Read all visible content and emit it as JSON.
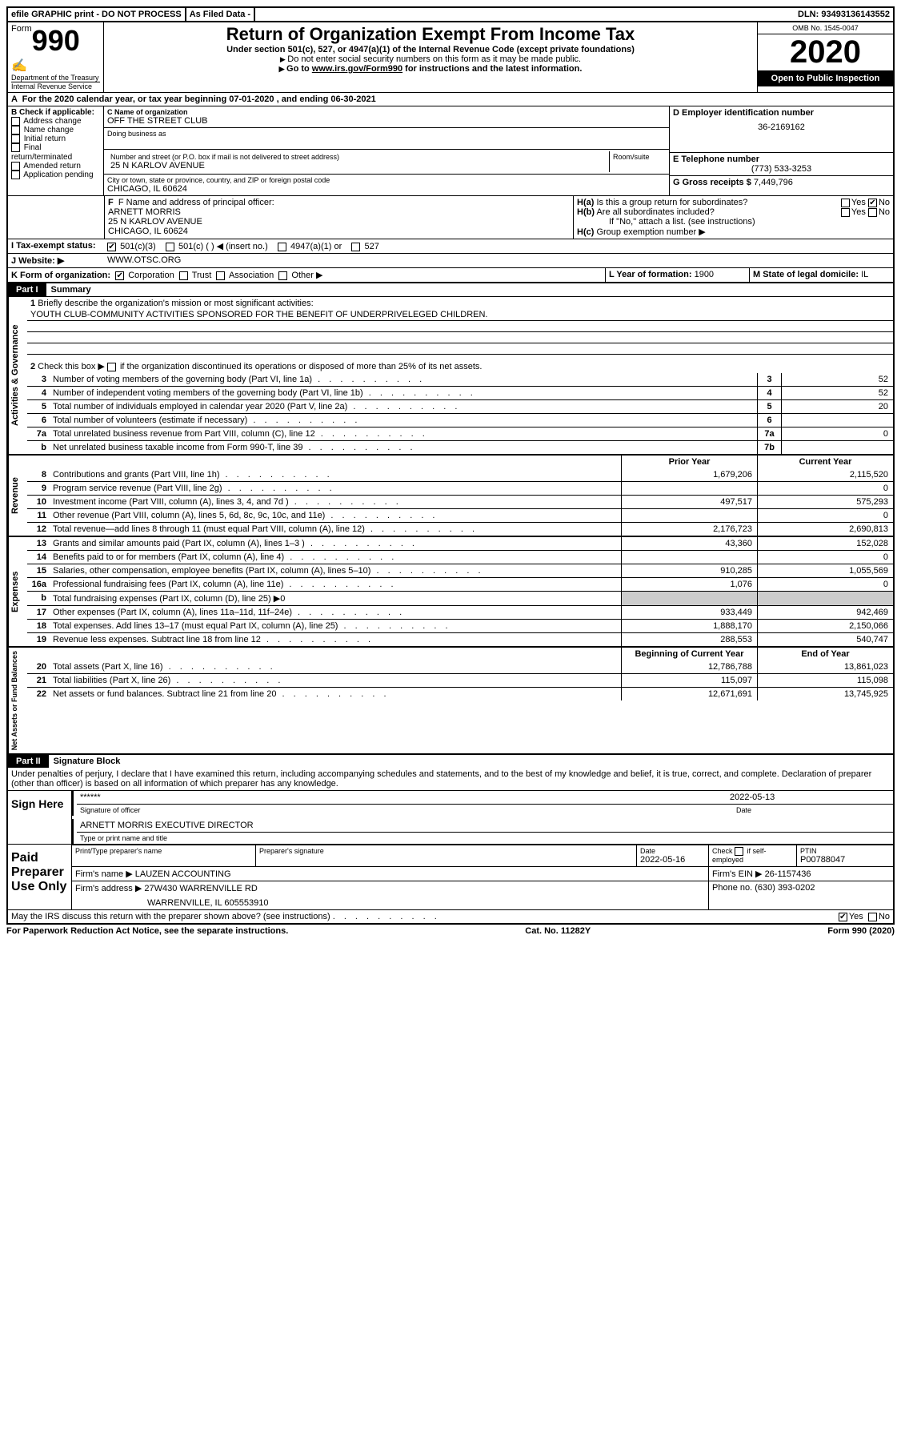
{
  "topbar": {
    "efile": "efile GRAPHIC print - DO NOT PROCESS",
    "asfiled": "As Filed Data -",
    "dln_label": "DLN:",
    "dln": "93493136143552"
  },
  "header": {
    "form_word": "Form",
    "form_num": "990",
    "dept": "Department of the Treasury",
    "irs": "Internal Revenue Service",
    "title": "Return of Organization Exempt From Income Tax",
    "subtitle": "Under section 501(c), 527, or 4947(a)(1) of the Internal Revenue Code (except private foundations)",
    "note1": "Do not enter social security numbers on this form as it may be made public.",
    "note2_pre": "Go to ",
    "note2_link": "www.irs.gov/Form990",
    "note2_post": " for instructions and the latest information.",
    "omb": "OMB No. 1545-0047",
    "year": "2020",
    "open": "Open to Public Inspection"
  },
  "rowA": {
    "prefix": "A",
    "text": "For the 2020 calendar year, or tax year beginning 07-01-2020   , and ending 06-30-2021"
  },
  "boxB": {
    "label": "B Check if applicable:",
    "items": [
      "Address change",
      "Name change",
      "Initial return",
      "Final return/terminated",
      "Amended return",
      "Application pending"
    ]
  },
  "boxC": {
    "label": "C Name of organization",
    "name": "OFF THE STREET CLUB",
    "dba_label": "Doing business as",
    "addr_label": "Number and street (or P.O. box if mail is not delivered to street address)",
    "room_label": "Room/suite",
    "addr": "25 N KARLOV AVENUE",
    "city_label": "City or town, state or province, country, and ZIP or foreign postal code",
    "city": "CHICAGO, IL  60624"
  },
  "boxD": {
    "label": "D Employer identification number",
    "value": "36-2169162"
  },
  "boxE": {
    "label": "E Telephone number",
    "value": "(773) 533-3253"
  },
  "boxG": {
    "label": "G Gross receipts $",
    "value": "7,449,796"
  },
  "boxF": {
    "label": "F  Name and address of principal officer:",
    "name": "ARNETT MORRIS",
    "addr1": "25 N KARLOV AVENUE",
    "addr2": "CHICAGO, IL  60624"
  },
  "boxH": {
    "ha": "H(a)  Is this a group return for subordinates?",
    "hb": "H(b)  Are all subordinates included?",
    "hc_note": "If \"No,\" attach a list. (see instructions)",
    "hc": "H(c)  Group exemption number ▶",
    "yes": "Yes",
    "no": "No"
  },
  "rowI": {
    "label": "I   Tax-exempt status:",
    "opts": [
      "501(c)(3)",
      "501(c) (  ) ◀ (insert no.)",
      "4947(a)(1) or",
      "527"
    ]
  },
  "rowJ": {
    "label": "J   Website: ▶",
    "value": "WWW.OTSC.ORG"
  },
  "rowK": {
    "label": "K Form of organization:",
    "opts": [
      "Corporation",
      "Trust",
      "Association",
      "Other ▶"
    ]
  },
  "rowL": {
    "label": "L Year of formation:",
    "value": "1900"
  },
  "rowM": {
    "label": "M State of legal domicile:",
    "value": "IL"
  },
  "part1": {
    "tab": "Part I",
    "title": "Summary",
    "q1": "Briefly describe the organization's mission or most significant activities:",
    "mission": "YOUTH CLUB-COMMUNITY ACTIVITIES SPONSORED FOR THE BENEFIT OF UNDERPRIVELEGED CHILDREN.",
    "q2": "Check this box ▶       if the organization discontinued its operations or disposed of more than 25% of its net assets.",
    "lines_gov": [
      {
        "n": "3",
        "t": "Number of voting members of the governing body (Part VI, line 1a)",
        "box": "3",
        "v": "52"
      },
      {
        "n": "4",
        "t": "Number of independent voting members of the governing body (Part VI, line 1b)",
        "box": "4",
        "v": "52"
      },
      {
        "n": "5",
        "t": "Total number of individuals employed in calendar year 2020 (Part V, line 2a)",
        "box": "5",
        "v": "20"
      },
      {
        "n": "6",
        "t": "Total number of volunteers (estimate if necessary)",
        "box": "6",
        "v": ""
      },
      {
        "n": "7a",
        "t": "Total unrelated business revenue from Part VIII, column (C), line 12",
        "box": "7a",
        "v": "0"
      },
      {
        "n": "b",
        "t": "Net unrelated business taxable income from Form 990-T, line 39",
        "box": "7b",
        "v": ""
      }
    ],
    "head_prior": "Prior Year",
    "head_current": "Current Year",
    "lines_rev": [
      {
        "n": "8",
        "t": "Contributions and grants (Part VIII, line 1h)",
        "p": "1,679,206",
        "c": "2,115,520"
      },
      {
        "n": "9",
        "t": "Program service revenue (Part VIII, line 2g)",
        "p": "",
        "c": "0"
      },
      {
        "n": "10",
        "t": "Investment income (Part VIII, column (A), lines 3, 4, and 7d )",
        "p": "497,517",
        "c": "575,293"
      },
      {
        "n": "11",
        "t": "Other revenue (Part VIII, column (A), lines 5, 6d, 8c, 9c, 10c, and 11e)",
        "p": "",
        "c": "0"
      },
      {
        "n": "12",
        "t": "Total revenue—add lines 8 through 11 (must equal Part VIII, column (A), line 12)",
        "p": "2,176,723",
        "c": "2,690,813"
      }
    ],
    "lines_exp": [
      {
        "n": "13",
        "t": "Grants and similar amounts paid (Part IX, column (A), lines 1–3 )",
        "p": "43,360",
        "c": "152,028"
      },
      {
        "n": "14",
        "t": "Benefits paid to or for members (Part IX, column (A), line 4)",
        "p": "",
        "c": "0"
      },
      {
        "n": "15",
        "t": "Salaries, other compensation, employee benefits (Part IX, column (A), lines 5–10)",
        "p": "910,285",
        "c": "1,055,569"
      },
      {
        "n": "16a",
        "t": "Professional fundraising fees (Part IX, column (A), line 11e)",
        "p": "1,076",
        "c": "0"
      },
      {
        "n": "b",
        "t": "Total fundraising expenses (Part IX, column (D), line 25) ▶0",
        "p": "shade",
        "c": "shade"
      },
      {
        "n": "17",
        "t": "Other expenses (Part IX, column (A), lines 11a–11d, 11f–24e)",
        "p": "933,449",
        "c": "942,469"
      },
      {
        "n": "18",
        "t": "Total expenses. Add lines 13–17 (must equal Part IX, column (A), line 25)",
        "p": "1,888,170",
        "c": "2,150,066"
      },
      {
        "n": "19",
        "t": "Revenue less expenses. Subtract line 18 from line 12",
        "p": "288,553",
        "c": "540,747"
      }
    ],
    "head_begin": "Beginning of Current Year",
    "head_end": "End of Year",
    "lines_net": [
      {
        "n": "20",
        "t": "Total assets (Part X, line 16)",
        "p": "12,786,788",
        "c": "13,861,023"
      },
      {
        "n": "21",
        "t": "Total liabilities (Part X, line 26)",
        "p": "115,097",
        "c": "115,098"
      },
      {
        "n": "22",
        "t": "Net assets or fund balances. Subtract line 21 from line 20",
        "p": "12,671,691",
        "c": "13,745,925"
      }
    ],
    "vlabels": {
      "gov": "Activities & Governance",
      "rev": "Revenue",
      "exp": "Expenses",
      "net": "Net Assets or Fund Balances"
    }
  },
  "part2": {
    "tab": "Part II",
    "title": "Signature Block",
    "perjury": "Under penalties of perjury, I declare that I have examined this return, including accompanying schedules and statements, and to the best of my knowledge and belief, it is true, correct, and complete. Declaration of preparer (other than officer) is based on all information of which preparer has any knowledge.",
    "sign_here": "Sign Here",
    "sig_stars": "******",
    "sig_date": "2022-05-13",
    "sig_label": "Signature of officer",
    "date_label": "Date",
    "officer": "ARNETT MORRIS  EXECUTIVE DIRECTOR",
    "type_label": "Type or print name and title",
    "paid": "Paid Preparer Use Only",
    "prep_name_label": "Print/Type preparer's name",
    "prep_sig_label": "Preparer's signature",
    "prep_date_label": "Date",
    "prep_date": "2022-05-16",
    "check_self": "Check       if self-employed",
    "ptin_label": "PTIN",
    "ptin": "P00788047",
    "firm_name_label": "Firm's name   ▶",
    "firm_name": "LAUZEN ACCOUNTING",
    "firm_ein_label": "Firm's EIN ▶",
    "firm_ein": "26-1157436",
    "firm_addr_label": "Firm's address ▶",
    "firm_addr1": "27W430 WARRENVILLE RD",
    "firm_addr2": "WARRENVILLE, IL  605553910",
    "phone_label": "Phone no.",
    "phone": "(630) 393-0202",
    "discuss": "May the IRS discuss this return with the preparer shown above? (see instructions)",
    "yes": "Yes",
    "no": "No"
  },
  "footer": {
    "pra": "For Paperwork Reduction Act Notice, see the separate instructions.",
    "cat": "Cat. No. 11282Y",
    "form": "Form 990 (2020)"
  }
}
